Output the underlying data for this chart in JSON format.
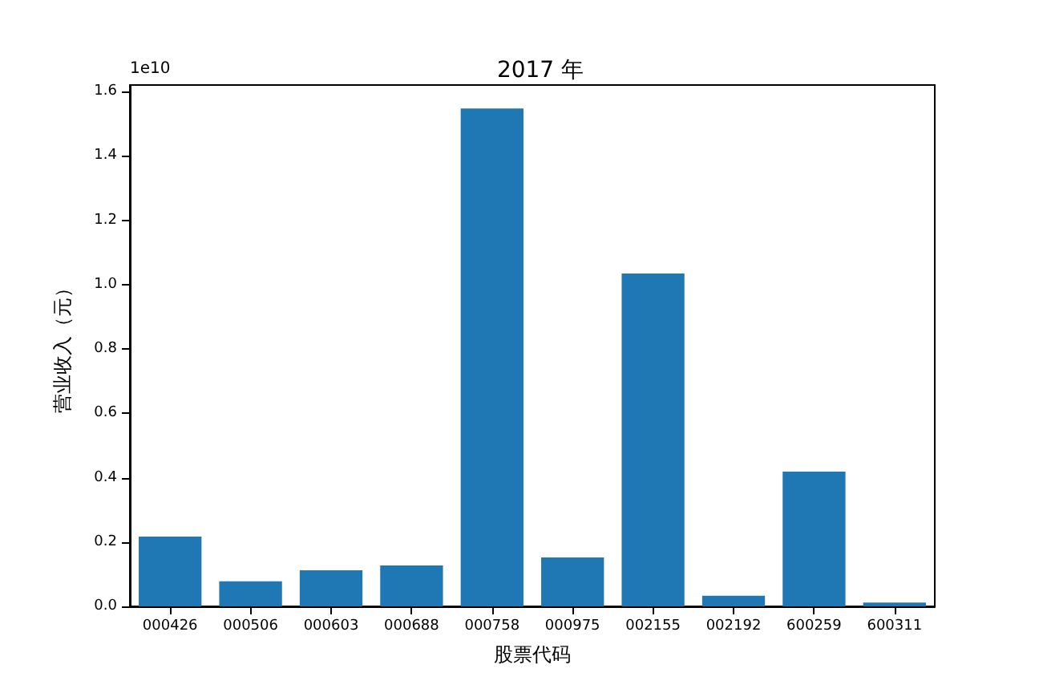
{
  "chart_data": {
    "type": "bar",
    "title": "2017 年",
    "xlabel": "股票代码",
    "ylabel": "营业收入（元）",
    "categories": [
      "000426",
      "000506",
      "000603",
      "000688",
      "000758",
      "000975",
      "002155",
      "002192",
      "600259",
      "600311"
    ],
    "values": [
      0.217,
      0.078,
      0.112,
      0.127,
      1.547,
      0.152,
      1.034,
      0.033,
      0.419,
      0.012
    ],
    "color": "#1f77b4",
    "ylim": [
      0,
      1.62
    ],
    "yticks": [
      {
        "value": 0,
        "label": "0.0"
      },
      {
        "value": 0.2,
        "label": "0.2"
      },
      {
        "value": 0.4,
        "label": "0.4"
      },
      {
        "value": 0.6,
        "label": "0.6"
      },
      {
        "value": 0.8,
        "label": "0.8"
      },
      {
        "value": 1.0,
        "label": "1.0"
      },
      {
        "value": 1.2,
        "label": "1.2"
      },
      {
        "value": 1.4,
        "label": "1.4"
      },
      {
        "value": 1.6,
        "label": "1.6"
      }
    ],
    "annotations": [
      "1e10"
    ],
    "grid": false
  }
}
